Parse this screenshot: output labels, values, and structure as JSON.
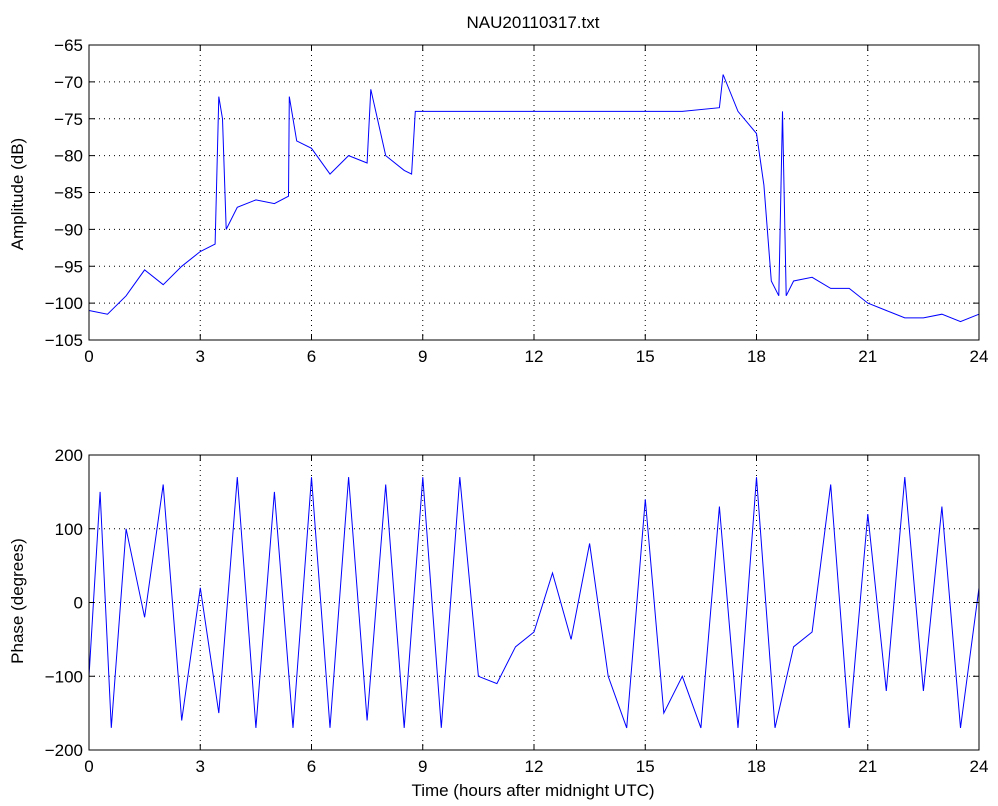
{
  "colors": {
    "series": "#0000ff",
    "axes": "#000000",
    "grid": "#000000",
    "background": "#ffffff"
  },
  "chart_data": [
    {
      "type": "line",
      "title": "NAU20110317.txt",
      "xlabel": "",
      "ylabel": "Amplitude (dB)",
      "xlim": [
        0,
        24
      ],
      "ylim": [
        -105,
        -65
      ],
      "xticks": [
        "0",
        "3",
        "6",
        "9",
        "12",
        "15",
        "18",
        "21",
        "24"
      ],
      "yticks": [
        "-105",
        "-100",
        "-95",
        "-90",
        "-85",
        "-80",
        "-75",
        "-70",
        "-65"
      ],
      "grid": true,
      "series": [
        {
          "x": [
            0,
            0.5,
            1.0,
            1.5,
            2.0,
            2.5,
            3.0,
            3.4,
            3.5,
            3.6,
            3.7,
            4.0,
            4.5,
            5.0,
            5.38,
            5.4,
            5.6,
            6.0,
            6.5,
            7.0,
            7.5,
            7.6,
            8.0,
            8.5,
            8.7,
            8.8,
            9.0,
            10,
            11,
            12,
            13,
            14,
            15,
            16,
            17,
            17.1,
            17.5,
            18.0,
            18.2,
            18.4,
            18.6,
            18.7,
            18.8,
            19.0,
            19.5,
            20,
            20.5,
            21,
            21.5,
            22,
            22.5,
            23,
            23.5,
            24
          ],
          "values": [
            -101,
            -101.5,
            -99,
            -95.5,
            -97.5,
            -95,
            -93,
            -92,
            -72,
            -75,
            -90,
            -87,
            -86,
            -86.5,
            -85.5,
            -72,
            -78,
            -79,
            -82.5,
            -80,
            -81,
            -71,
            -80,
            -82,
            -82.5,
            -74,
            -74,
            -74,
            -74,
            -74,
            -74,
            -74,
            -74,
            -74,
            -73.5,
            -69,
            -74,
            -77,
            -84,
            -97,
            -99,
            -74,
            -99,
            -97,
            -96.5,
            -98,
            -98,
            -100,
            -101,
            -102,
            -102,
            -101.5,
            -102.5,
            -101.5
          ]
        }
      ]
    },
    {
      "type": "line",
      "title": "",
      "xlabel": "Time (hours after midnight UTC)",
      "ylabel": "Phase (degrees)",
      "xlim": [
        0,
        24
      ],
      "ylim": [
        -200,
        200
      ],
      "xticks": [
        "0",
        "3",
        "6",
        "9",
        "12",
        "15",
        "18",
        "21",
        "24"
      ],
      "yticks": [
        "-200",
        "-100",
        "0",
        "100",
        "200"
      ],
      "grid": true,
      "series": [
        {
          "x": [
            0,
            0.3,
            0.6,
            1.0,
            1.5,
            2.0,
            2.5,
            3.0,
            3.5,
            4.0,
            4.5,
            5.0,
            5.5,
            6.0,
            6.5,
            7.0,
            7.5,
            8.0,
            8.5,
            9.0,
            9.5,
            10.0,
            10.5,
            11.0,
            11.5,
            12.0,
            12.5,
            13.0,
            13.5,
            14.0,
            14.5,
            15.0,
            15.5,
            16.0,
            16.5,
            17.0,
            17.5,
            18.0,
            18.5,
            19.0,
            19.5,
            20.0,
            20.5,
            21.0,
            21.5,
            22.0,
            22.5,
            23.0,
            23.5,
            24.0
          ],
          "values": [
            -100,
            150,
            -170,
            100,
            -20,
            160,
            -160,
            20,
            -150,
            170,
            -170,
            150,
            -170,
            170,
            -170,
            170,
            -160,
            160,
            -170,
            170,
            -170,
            170,
            -100,
            -110,
            -60,
            -40,
            40,
            -50,
            80,
            -100,
            -170,
            140,
            -150,
            -100,
            -170,
            130,
            -170,
            170,
            -170,
            -60,
            -40,
            160,
            -170,
            120,
            -120,
            170,
            -120,
            130,
            -170,
            20
          ]
        }
      ]
    }
  ]
}
